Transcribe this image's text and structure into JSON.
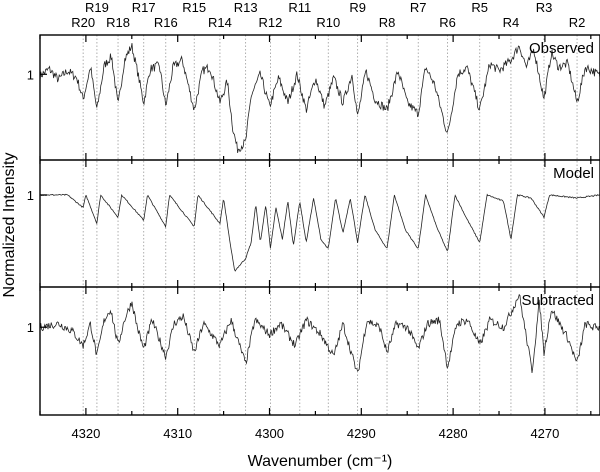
{
  "chart_data": {
    "type": "line",
    "xlabel": "Wavenumber (cm⁻¹)",
    "ylabel": "Normalized Intensity",
    "xlim": [
      4325,
      4264
    ],
    "x_reversed": true,
    "xticks": [
      4320,
      4310,
      4300,
      4290,
      4280,
      4270
    ],
    "grid": false,
    "yticks_label": "1",
    "lines": [
      {
        "label": "R20",
        "x": 4320.3,
        "row": "lower"
      },
      {
        "label": "R19",
        "x": 4318.8,
        "row": "upper"
      },
      {
        "label": "R18",
        "x": 4316.5,
        "row": "lower"
      },
      {
        "label": "R17",
        "x": 4313.7,
        "row": "upper"
      },
      {
        "label": "R16",
        "x": 4311.3,
        "row": "lower"
      },
      {
        "label": "R15",
        "x": 4308.2,
        "row": "upper"
      },
      {
        "label": "R14",
        "x": 4305.4,
        "row": "lower"
      },
      {
        "label": "R13",
        "x": 4302.6,
        "row": "upper"
      },
      {
        "label": "R12",
        "x": 4299.9,
        "row": "lower"
      },
      {
        "label": "R11",
        "x": 4296.7,
        "row": "upper"
      },
      {
        "label": "R10",
        "x": 4293.6,
        "row": "lower"
      },
      {
        "label": "R9",
        "x": 4290.4,
        "row": "upper"
      },
      {
        "label": "R8",
        "x": 4287.2,
        "row": "lower"
      },
      {
        "label": "R7",
        "x": 4283.8,
        "row": "upper"
      },
      {
        "label": "R6",
        "x": 4280.6,
        "row": "lower"
      },
      {
        "label": "R5",
        "x": 4277.1,
        "row": "upper"
      },
      {
        "label": "R4",
        "x": 4273.7,
        "row": "lower"
      },
      {
        "label": "R3",
        "x": 4270.1,
        "row": "upper"
      },
      {
        "label": "R2",
        "x": 4266.5,
        "row": "lower"
      }
    ],
    "panels": [
      {
        "name": "Observed",
        "ylim": [
          0.52,
          1.22
        ],
        "noise": 0.025,
        "points": [
          [
            4325,
            0.99
          ],
          [
            4324,
            1.03
          ],
          [
            4323,
            0.97
          ],
          [
            4322,
            1.02
          ],
          [
            4321,
            0.98
          ],
          [
            4320.3,
            0.86
          ],
          [
            4319.5,
            1.04
          ],
          [
            4318.8,
            0.8
          ],
          [
            4318,
            1.05
          ],
          [
            4317.2,
            1.1
          ],
          [
            4316.5,
            0.82
          ],
          [
            4315.8,
            1.08
          ],
          [
            4315,
            1.16
          ],
          [
            4314.4,
            1.02
          ],
          [
            4313.7,
            0.84
          ],
          [
            4313,
            1.03
          ],
          [
            4312,
            1.05
          ],
          [
            4311.3,
            0.82
          ],
          [
            4310.5,
            1.04
          ],
          [
            4309.5,
            1.08
          ],
          [
            4308.2,
            0.8
          ],
          [
            4307.3,
            1.02
          ],
          [
            4306.5,
            1.04
          ],
          [
            4305.4,
            0.84
          ],
          [
            4304.6,
            0.96
          ],
          [
            4304,
            0.7
          ],
          [
            4303.5,
            0.58
          ],
          [
            4302.6,
            0.62
          ],
          [
            4302,
            0.88
          ],
          [
            4301,
            1.0
          ],
          [
            4300,
            0.82
          ],
          [
            4299,
            0.98
          ],
          [
            4298,
            0.84
          ],
          [
            4297,
            1.0
          ],
          [
            4296,
            0.8
          ],
          [
            4295,
            0.98
          ],
          [
            4294,
            0.82
          ],
          [
            4293,
            0.98
          ],
          [
            4292,
            0.84
          ],
          [
            4291,
            1.0
          ],
          [
            4290.4,
            0.76
          ],
          [
            4289.5,
            1.02
          ],
          [
            4288.5,
            0.86
          ],
          [
            4287.2,
            0.8
          ],
          [
            4286,
            1.02
          ],
          [
            4285,
            0.84
          ],
          [
            4283.8,
            0.78
          ],
          [
            4283,
            1.04
          ],
          [
            4282,
            0.94
          ],
          [
            4280.6,
            0.66
          ],
          [
            4279.5,
            1.0
          ],
          [
            4278.5,
            1.04
          ],
          [
            4277.1,
            0.8
          ],
          [
            4276,
            1.06
          ],
          [
            4275,
            1.02
          ],
          [
            4273.7,
            1.08
          ],
          [
            4272.8,
            1.16
          ],
          [
            4272,
            1.04
          ],
          [
            4271.2,
            1.14
          ],
          [
            4270.1,
            0.86
          ],
          [
            4269.3,
            1.12
          ],
          [
            4268.5,
            1.04
          ],
          [
            4267.5,
            1.06
          ],
          [
            4266.5,
            0.84
          ],
          [
            4265.6,
            1.04
          ],
          [
            4264.8,
            1.02
          ],
          [
            4264,
            0.99
          ]
        ]
      },
      {
        "name": "Model",
        "ylim": [
          0.42,
          1.22
        ],
        "noise": 0.004,
        "points": [
          [
            4325,
            1.0
          ],
          [
            4322,
            1.0
          ],
          [
            4320.3,
            0.92
          ],
          [
            4320,
            1.0
          ],
          [
            4318.8,
            0.82
          ],
          [
            4318.4,
            1.0
          ],
          [
            4316.5,
            0.86
          ],
          [
            4316.1,
            1.0
          ],
          [
            4313.7,
            0.84
          ],
          [
            4313.3,
            1.0
          ],
          [
            4311.3,
            0.8
          ],
          [
            4310.9,
            1.0
          ],
          [
            4308.2,
            0.8
          ],
          [
            4307.8,
            1.0
          ],
          [
            4305.4,
            0.82
          ],
          [
            4305,
            0.98
          ],
          [
            4304.3,
            0.7
          ],
          [
            4303.8,
            0.52
          ],
          [
            4303.2,
            0.56
          ],
          [
            4302.6,
            0.6
          ],
          [
            4302,
            0.7
          ],
          [
            4301.5,
            0.94
          ],
          [
            4301,
            0.7
          ],
          [
            4300.4,
            0.94
          ],
          [
            4299.9,
            0.66
          ],
          [
            4299.3,
            0.92
          ],
          [
            4298.6,
            0.72
          ],
          [
            4298,
            0.96
          ],
          [
            4297.4,
            0.68
          ],
          [
            4296.7,
            0.96
          ],
          [
            4296,
            0.7
          ],
          [
            4295.2,
            0.98
          ],
          [
            4294.4,
            0.72
          ],
          [
            4293.6,
            0.66
          ],
          [
            4292.8,
            0.98
          ],
          [
            4292,
            0.76
          ],
          [
            4291.2,
            0.98
          ],
          [
            4290.4,
            0.7
          ],
          [
            4289.6,
            1.0
          ],
          [
            4288.5,
            0.78
          ],
          [
            4287.2,
            0.66
          ],
          [
            4286.4,
            1.0
          ],
          [
            4285.2,
            0.78
          ],
          [
            4283.8,
            0.66
          ],
          [
            4283,
            1.0
          ],
          [
            4281.8,
            0.8
          ],
          [
            4280.6,
            0.64
          ],
          [
            4279.8,
            1.0
          ],
          [
            4278.6,
            0.86
          ],
          [
            4277.1,
            0.7
          ],
          [
            4276.3,
            1.0
          ],
          [
            4274.5,
            0.96
          ],
          [
            4273.7,
            0.72
          ],
          [
            4273,
            1.0
          ],
          [
            4271.5,
            0.98
          ],
          [
            4270.1,
            0.86
          ],
          [
            4269.5,
            1.0
          ],
          [
            4266.5,
            0.98
          ],
          [
            4264,
            1.0
          ]
        ]
      },
      {
        "name": "Subtracted",
        "ylim": [
          0.52,
          1.22
        ],
        "noise": 0.022,
        "points": [
          [
            4325,
            1.0
          ],
          [
            4323,
            1.02
          ],
          [
            4321.5,
            0.98
          ],
          [
            4320.3,
            0.9
          ],
          [
            4319.5,
            1.02
          ],
          [
            4318.8,
            0.84
          ],
          [
            4318,
            1.04
          ],
          [
            4317.3,
            1.1
          ],
          [
            4316.5,
            0.9
          ],
          [
            4315.8,
            1.04
          ],
          [
            4315,
            1.14
          ],
          [
            4314.4,
            1.0
          ],
          [
            4313.7,
            0.88
          ],
          [
            4312.8,
            1.04
          ],
          [
            4311.3,
            0.84
          ],
          [
            4310.4,
            1.02
          ],
          [
            4309.4,
            1.06
          ],
          [
            4308.2,
            0.86
          ],
          [
            4307.2,
            1.02
          ],
          [
            4305.4,
            0.9
          ],
          [
            4304.2,
            1.04
          ],
          [
            4302.6,
            0.8
          ],
          [
            4301.6,
            1.04
          ],
          [
            4300,
            0.96
          ],
          [
            4298.8,
            1.02
          ],
          [
            4297.2,
            0.9
          ],
          [
            4296,
            1.04
          ],
          [
            4294.4,
            0.96
          ],
          [
            4293,
            0.84
          ],
          [
            4292,
            1.02
          ],
          [
            4290.4,
            0.74
          ],
          [
            4289.4,
            1.04
          ],
          [
            4288,
            1.0
          ],
          [
            4287.2,
            0.86
          ],
          [
            4286.2,
            1.02
          ],
          [
            4285,
            1.0
          ],
          [
            4283.8,
            0.88
          ],
          [
            4282.8,
            1.02
          ],
          [
            4281.5,
            1.04
          ],
          [
            4280.6,
            0.78
          ],
          [
            4279.6,
            1.02
          ],
          [
            4278.4,
            1.04
          ],
          [
            4277.1,
            0.9
          ],
          [
            4276,
            1.04
          ],
          [
            4274.5,
            1.0
          ],
          [
            4273.7,
            1.08
          ],
          [
            4272.8,
            1.18
          ],
          [
            4272,
            0.94
          ],
          [
            4271.4,
            0.76
          ],
          [
            4270.6,
            1.14
          ],
          [
            4270.1,
            0.86
          ],
          [
            4269.3,
            1.1
          ],
          [
            4268.4,
            1.02
          ],
          [
            4267.5,
            0.94
          ],
          [
            4266.5,
            0.8
          ],
          [
            4265.6,
            1.02
          ],
          [
            4264.8,
            1.0
          ],
          [
            4264,
            1.0
          ]
        ]
      }
    ]
  }
}
